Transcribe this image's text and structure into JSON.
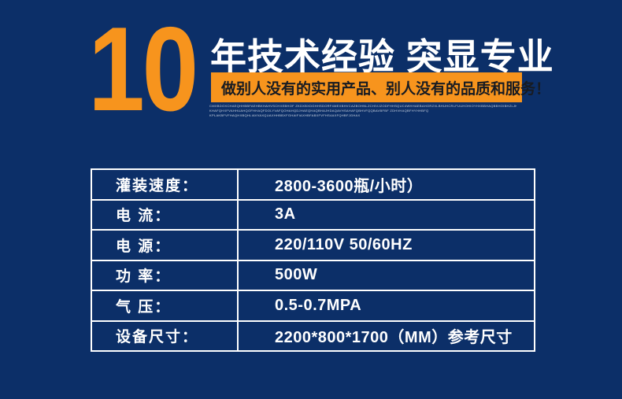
{
  "theme": {
    "background": "#0c2f68",
    "accent_orange": "#f7941d",
    "text_white": "#ffffff",
    "banner_text_color": "#171b22",
    "table_border": "#ffffff"
  },
  "hero": {
    "years_number": "10",
    "headline": "年技术经验 突显专业",
    "banner": "做别人没有的实用产品、别人没有的品质和服务！",
    "fineprint_lines": [
      "CMXBDOXCHAEQHHBBFAEHBKHAHVSCHXEBHOF ZKDXBXDGHHSDORF4MEXBHVCAZBOHNLZCHIVJZODFHHSQUC4WHHAEBAHORZXLBHUHCRLFUUHOHIOYHXBBHAQBBHOIBHZLJKOYVXBBHHCOUMXBOHHHXBXOOBHBFABDLIUAPOHDOMHBHHXBDFHHXBBHFHAHBBAFH",
      "KHAFQHXFVAHHUAHQOFHHAQFDOLYVAFQOHAHQDJHAEQHAQBHAJHDAQAVHSAHAFQBHVFQQBAVBFBF ZDHVHAQBFHYHHBFQFHABFBHFVFHAEQDQXHHAABQEVFHAEQFHAVO",
      "KPLAKBFVFHAQHXBQHLIAVVAXQUAXHHBBXFGHAIFIAXHBFABXFVFHS4AXFQHBFJGHAXQBHHXBFQBXFHHA"
    ]
  },
  "spec_table": {
    "rows": [
      {
        "label": "灌装速度：",
        "value": "2800-3600瓶/小时）"
      },
      {
        "label": "电 流：",
        "value": "3A"
      },
      {
        "label": "电 源：",
        "value": "220/110V 50/60HZ"
      },
      {
        "label": "功 率：",
        "value": "500W"
      },
      {
        "label": "气 压：",
        "value": "0.5-0.7MPA"
      },
      {
        "label": "设备尺寸：",
        "value": "2200*800*1700（MM）参考尺寸"
      }
    ]
  }
}
